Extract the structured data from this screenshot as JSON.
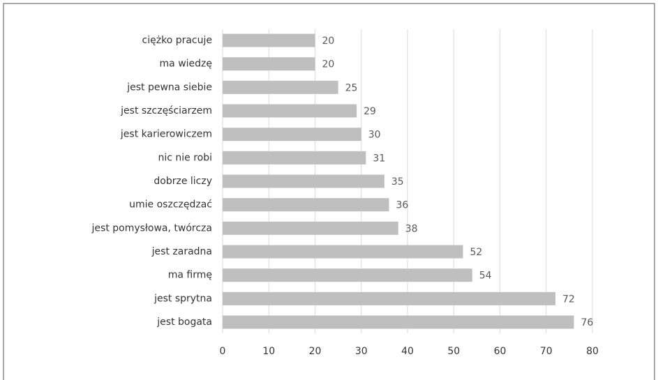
{
  "chart_data": {
    "type": "bar",
    "orientation": "horizontal",
    "categories": [
      "ciężko pracuje",
      "ma wiedzę",
      "jest pewna siebie",
      "jest szczęściarzem",
      "jest karierowiczem",
      "nic nie robi",
      "dobrze liczy",
      "umie oszczędzać",
      "jest pomysłowa, twórcza",
      "jest zaradna",
      "ma firmę",
      "jest sprytna",
      "jest bogata"
    ],
    "values": [
      20,
      20,
      25,
      29,
      30,
      31,
      35,
      36,
      38,
      52,
      54,
      72,
      76
    ],
    "color": "#bfbfbf",
    "xlim": [
      0,
      80
    ],
    "xticks": [
      0,
      10,
      20,
      30,
      40,
      50,
      60,
      70,
      80
    ],
    "grid": true
  }
}
